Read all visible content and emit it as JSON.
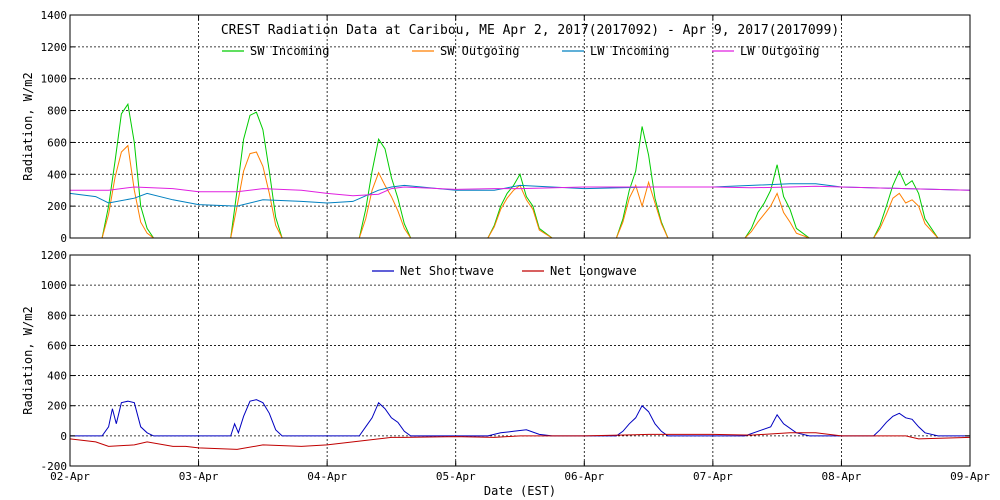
{
  "chart_data": [
    {
      "type": "line",
      "title": "CREST Radiation Data at Caribou, ME   Apr  2, 2017(2017092) - Apr  9, 2017(2017099)",
      "xlabel": "",
      "ylabel": "Radiation, W/m2",
      "ylim": [
        0,
        1400
      ],
      "yticks": [
        "0",
        "200",
        "400",
        "600",
        "800",
        "1000",
        "1200",
        "1400"
      ],
      "xlim_days": [
        0,
        7
      ],
      "xtick_labels": [
        "02-Apr",
        "03-Apr",
        "04-Apr",
        "05-Apr",
        "06-Apr",
        "07-Apr",
        "08-Apr",
        "09-Apr"
      ],
      "grid": true,
      "legend_position": "top-center",
      "series": [
        {
          "name": "SW Incoming",
          "color": "#00cc00",
          "x": [
            0,
            0.25,
            0.3,
            0.35,
            0.4,
            0.45,
            0.5,
            0.55,
            0.6,
            0.65,
            0.75,
            1,
            1.25,
            1.3,
            1.35,
            1.4,
            1.45,
            1.5,
            1.55,
            1.6,
            1.65,
            1.75,
            2,
            2.25,
            2.3,
            2.35,
            2.4,
            2.45,
            2.5,
            2.55,
            2.6,
            2.65,
            2.75,
            3,
            3.25,
            3.3,
            3.35,
            3.4,
            3.45,
            3.5,
            3.55,
            3.6,
            3.65,
            3.75,
            4,
            4.25,
            4.3,
            4.35,
            4.4,
            4.45,
            4.5,
            4.55,
            4.6,
            4.65,
            4.75,
            5,
            5.25,
            5.3,
            5.35,
            5.4,
            5.45,
            5.5,
            5.55,
            5.6,
            5.65,
            5.75,
            6,
            6.25,
            6.3,
            6.35,
            6.4,
            6.45,
            6.5,
            6.55,
            6.6,
            6.65,
            6.75,
            7
          ],
          "y": [
            0,
            0,
            200,
            480,
            780,
            840,
            600,
            200,
            60,
            0,
            0,
            0,
            0,
            300,
            620,
            770,
            790,
            680,
            420,
            130,
            0,
            0,
            0,
            0,
            180,
            420,
            620,
            560,
            380,
            250,
            90,
            0,
            0,
            0,
            0,
            80,
            200,
            280,
            330,
            400,
            260,
            200,
            60,
            0,
            0,
            0,
            120,
            300,
            420,
            700,
            520,
            250,
            100,
            0,
            0,
            0,
            0,
            60,
            160,
            220,
            300,
            460,
            260,
            180,
            60,
            0,
            0,
            0,
            80,
            200,
            330,
            420,
            330,
            360,
            280,
            120,
            0,
            0
          ]
        },
        {
          "name": "SW Outgoing",
          "color": "#ff7f00",
          "x": [
            0,
            0.25,
            0.3,
            0.35,
            0.4,
            0.45,
            0.5,
            0.55,
            0.6,
            0.65,
            0.75,
            1,
            1.25,
            1.3,
            1.35,
            1.4,
            1.45,
            1.5,
            1.55,
            1.6,
            1.65,
            1.75,
            2,
            2.25,
            2.3,
            2.35,
            2.4,
            2.45,
            2.5,
            2.55,
            2.6,
            2.65,
            2.75,
            3,
            3.25,
            3.3,
            3.35,
            3.4,
            3.45,
            3.5,
            3.55,
            3.6,
            3.65,
            3.75,
            4,
            4.25,
            4.3,
            4.35,
            4.4,
            4.45,
            4.5,
            4.55,
            4.6,
            4.65,
            4.75,
            5,
            5.25,
            5.3,
            5.35,
            5.4,
            5.45,
            5.5,
            5.55,
            5.6,
            5.65,
            5.75,
            6,
            6.25,
            6.3,
            6.35,
            6.4,
            6.45,
            6.5,
            6.55,
            6.6,
            6.65,
            6.75,
            7
          ],
          "y": [
            0,
            0,
            150,
            380,
            540,
            580,
            300,
            100,
            30,
            0,
            0,
            0,
            0,
            200,
            420,
            530,
            540,
            450,
            280,
            80,
            0,
            0,
            0,
            0,
            120,
            300,
            410,
            330,
            260,
            170,
            60,
            0,
            0,
            0,
            0,
            70,
            180,
            250,
            300,
            330,
            240,
            180,
            50,
            0,
            0,
            0,
            100,
            250,
            330,
            200,
            350,
            220,
            90,
            0,
            0,
            0,
            0,
            40,
            100,
            150,
            200,
            280,
            160,
            100,
            30,
            0,
            0,
            0,
            60,
            150,
            250,
            280,
            220,
            240,
            200,
            90,
            0,
            0
          ]
        },
        {
          "name": "LW Incoming",
          "color": "#0080c0",
          "x": [
            0,
            0.2,
            0.3,
            0.5,
            0.6,
            0.8,
            1,
            1.3,
            1.5,
            1.8,
            2,
            2.2,
            2.4,
            2.5,
            2.6,
            3,
            3.3,
            3.5,
            4,
            4.5,
            5,
            5.3,
            5.6,
            5.8,
            6,
            6.5,
            7
          ],
          "y": [
            280,
            260,
            220,
            250,
            280,
            240,
            210,
            200,
            240,
            230,
            220,
            230,
            300,
            320,
            330,
            300,
            300,
            330,
            310,
            320,
            320,
            330,
            340,
            340,
            320,
            310,
            300
          ]
        },
        {
          "name": "LW Outgoing",
          "color": "#e020e0",
          "x": [
            0,
            0.3,
            0.5,
            0.8,
            1,
            1.3,
            1.5,
            1.8,
            2,
            2.2,
            2.4,
            2.5,
            2.6,
            3,
            3.3,
            3.5,
            4,
            4.5,
            5,
            5.3,
            5.6,
            5.8,
            6,
            6.5,
            7
          ],
          "y": [
            300,
            300,
            320,
            310,
            290,
            290,
            310,
            300,
            280,
            265,
            275,
            310,
            320,
            305,
            310,
            310,
            320,
            320,
            320,
            315,
            320,
            325,
            320,
            310,
            300
          ]
        }
      ]
    },
    {
      "type": "line",
      "title": "",
      "xlabel": "Date (EST)",
      "ylabel": "Radiation, W/m2",
      "ylim": [
        -200,
        1200
      ],
      "yticks": [
        "-200",
        "0",
        "200",
        "400",
        "600",
        "800",
        "1000",
        "1200"
      ],
      "xlim_days": [
        0,
        7
      ],
      "xtick_labels": [
        "02-Apr",
        "03-Apr",
        "04-Apr",
        "05-Apr",
        "06-Apr",
        "07-Apr",
        "08-Apr",
        "09-Apr"
      ],
      "grid": true,
      "legend_position": "top-center",
      "series": [
        {
          "name": "Net Shortwave",
          "color": "#0000c0",
          "x": [
            0,
            0.25,
            0.3,
            0.33,
            0.36,
            0.4,
            0.45,
            0.5,
            0.55,
            0.6,
            0.65,
            0.75,
            1,
            1.25,
            1.28,
            1.31,
            1.35,
            1.4,
            1.45,
            1.5,
            1.55,
            1.6,
            1.65,
            1.75,
            2,
            2.25,
            2.3,
            2.35,
            2.4,
            2.45,
            2.5,
            2.55,
            2.6,
            2.65,
            2.75,
            3,
            3.25,
            3.35,
            3.45,
            3.55,
            3.65,
            3.75,
            4,
            4.25,
            4.3,
            4.35,
            4.4,
            4.45,
            4.5,
            4.55,
            4.6,
            4.65,
            4.75,
            5,
            5.25,
            5.35,
            5.45,
            5.5,
            5.55,
            5.65,
            5.75,
            6,
            6.25,
            6.3,
            6.35,
            6.4,
            6.45,
            6.5,
            6.55,
            6.6,
            6.65,
            6.75,
            7
          ],
          "y": [
            0,
            0,
            60,
            180,
            80,
            220,
            230,
            220,
            60,
            20,
            0,
            0,
            0,
            0,
            80,
            20,
            130,
            230,
            240,
            220,
            150,
            40,
            0,
            0,
            0,
            0,
            60,
            120,
            220,
            180,
            120,
            90,
            30,
            0,
            0,
            0,
            0,
            20,
            30,
            40,
            10,
            0,
            0,
            0,
            30,
            80,
            120,
            200,
            160,
            80,
            30,
            0,
            0,
            0,
            0,
            30,
            60,
            140,
            80,
            20,
            0,
            0,
            0,
            40,
            90,
            130,
            150,
            120,
            110,
            60,
            20,
            0,
            0
          ]
        },
        {
          "name": "Net Longwave",
          "color": "#c00000",
          "x": [
            0,
            0.2,
            0.3,
            0.5,
            0.6,
            0.8,
            0.9,
            1,
            1.3,
            1.5,
            1.8,
            2,
            2.2,
            2.4,
            2.5,
            2.6,
            3,
            3.3,
            3.5,
            4,
            4.5,
            5,
            5.3,
            5.6,
            5.8,
            6,
            6.5,
            6.6,
            7
          ],
          "y": [
            -20,
            -40,
            -70,
            -60,
            -40,
            -70,
            -70,
            -80,
            -90,
            -60,
            -70,
            -60,
            -40,
            -20,
            -10,
            -10,
            -5,
            -10,
            0,
            0,
            10,
            10,
            5,
            20,
            20,
            0,
            0,
            -20,
            -10
          ]
        }
      ]
    }
  ]
}
